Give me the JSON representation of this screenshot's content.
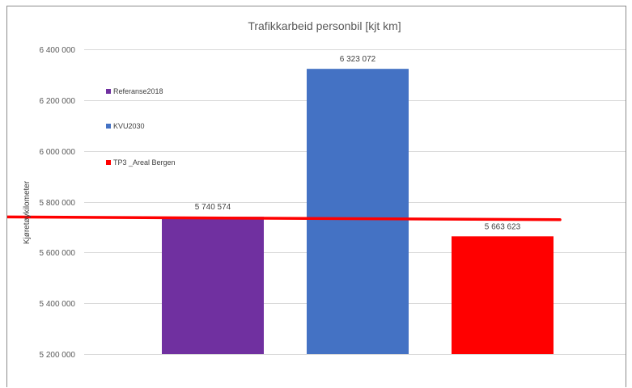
{
  "chart_data": {
    "type": "bar",
    "title": "Trafikkarbeid personbil [kjt km]",
    "ylabel": "Kjøretøykilometer",
    "xlabel": "",
    "ylim": [
      5200000,
      6400000
    ],
    "yticks": [
      5200000,
      5400000,
      5600000,
      5800000,
      6000000,
      6200000,
      6400000
    ],
    "ytick_labels": [
      "5 200 000",
      "5 400 000",
      "5 600 000",
      "5 800 000",
      "6 000 000",
      "6 200 000",
      "6 400 000"
    ],
    "grid": true,
    "legend_position": "left",
    "series": [
      {
        "name": "Referanse2018",
        "value": 5740574,
        "label": "5 740 574",
        "color": "#7030a0"
      },
      {
        "name": "KVU2030",
        "value": 6323072,
        "label": "6 323 072",
        "color": "#4472c4"
      },
      {
        "name": "TP3 _Areal Bergen",
        "value": 5663623,
        "label": "5 663 623",
        "color": "#ff0000"
      }
    ],
    "reference_line": {
      "start_value": 5740000,
      "end_value": 5729000,
      "color": "#ff0000"
    }
  }
}
